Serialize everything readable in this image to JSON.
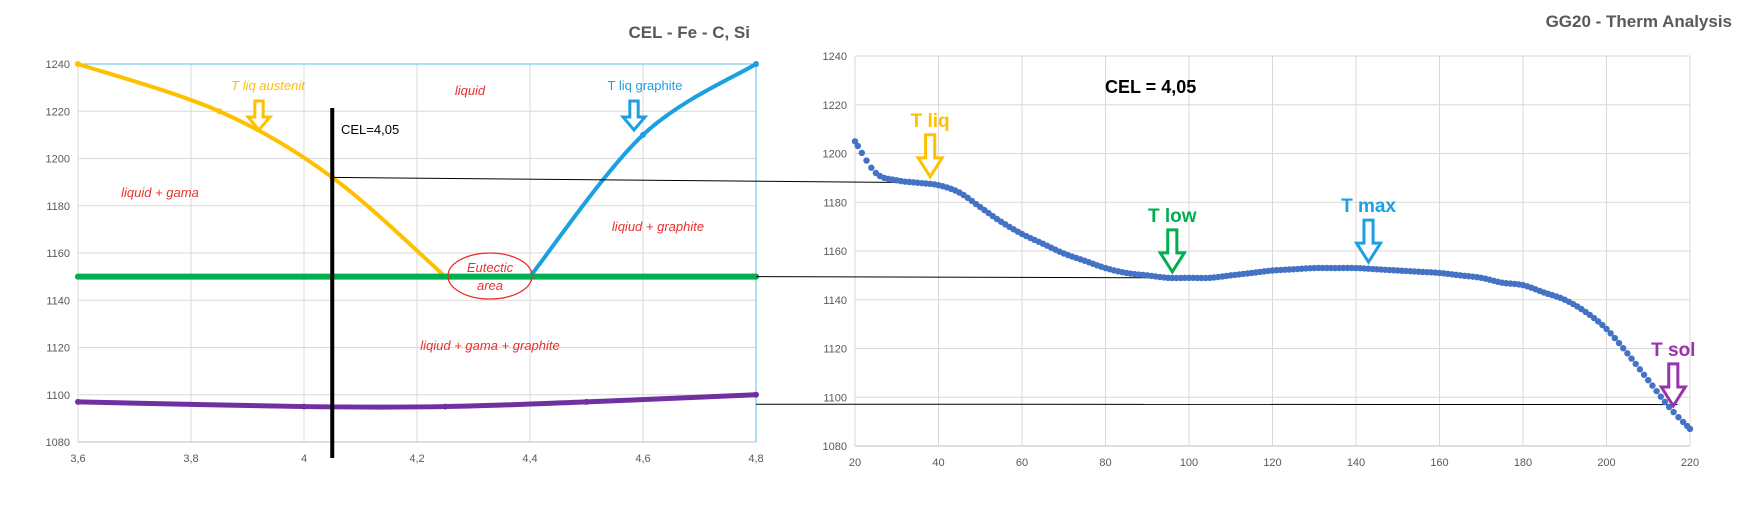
{
  "chart_data": [
    {
      "type": "line",
      "title": "CEL - Fe - C, Si",
      "xlim": [
        3.6,
        4.8
      ],
      "ylim": [
        1080,
        1240
      ],
      "x_ticks": [
        "3,6",
        "3,8",
        "4",
        "4,2",
        "4,4",
        "4,6",
        "4,8"
      ],
      "y_ticks": [
        "1240",
        "1220",
        "1200",
        "1180",
        "1160",
        "1140",
        "1120",
        "1100",
        "1080"
      ],
      "grid": true,
      "series": [
        {
          "name": "T liq austenit",
          "color": "#ffc000",
          "x": [
            3.6,
            3.85,
            4.05,
            4.25
          ],
          "y": [
            1240,
            1220,
            1192,
            1150
          ]
        },
        {
          "name": "T liq graphite",
          "color": "#1ba1e2",
          "x": [
            4.4,
            4.6,
            4.8
          ],
          "y": [
            1150,
            1210,
            1240
          ]
        },
        {
          "color": "#00b050",
          "x": [
            3.6,
            4.8
          ],
          "y": [
            1150,
            1150
          ]
        },
        {
          "color": "#7030a0",
          "x": [
            3.6,
            4.0,
            4.25,
            4.5,
            4.8
          ],
          "y": [
            1097,
            1095,
            1095,
            1097,
            1100
          ]
        }
      ],
      "marker_line": {
        "label": "CEL=4,05",
        "x": 4.05
      },
      "regions": [
        "liquid",
        "liquid + gama",
        "liqiud + graphite",
        "liqiud + gama + graphite"
      ],
      "eutectic_label": [
        "Eutectic",
        "area"
      ]
    },
    {
      "type": "scatter",
      "title": "GG20  - Therm Analysis",
      "xlim": [
        20,
        220
      ],
      "ylim": [
        1080,
        1240
      ],
      "x_ticks": [
        "20",
        "40",
        "60",
        "80",
        "100",
        "120",
        "140",
        "160",
        "180",
        "200",
        "220"
      ],
      "y_ticks": [
        "1240",
        "1220",
        "1200",
        "1180",
        "1160",
        "1140",
        "1120",
        "1100",
        "1080"
      ],
      "grid": true,
      "cel_label": "CEL = 4,05",
      "series": [
        {
          "color": "#4472c4",
          "x": [
            20,
            25,
            30,
            35,
            40,
            45,
            50,
            55,
            60,
            65,
            70,
            75,
            80,
            85,
            90,
            95,
            100,
            105,
            110,
            115,
            120,
            125,
            130,
            135,
            140,
            145,
            150,
            155,
            160,
            165,
            170,
            175,
            180,
            185,
            190,
            195,
            200,
            205,
            210,
            215,
            220
          ],
          "y": [
            1205,
            1192,
            1189,
            1188,
            1187,
            1184,
            1178,
            1172,
            1167,
            1163,
            1159,
            1156,
            1153,
            1151,
            1150,
            1149,
            1149,
            1149,
            1150,
            1151,
            1152,
            1152.5,
            1153,
            1153,
            1153,
            1152.5,
            1152,
            1151.5,
            1151,
            1150,
            1149,
            1147,
            1146,
            1143,
            1140,
            1135,
            1128,
            1118,
            1107,
            1096,
            1087
          ]
        }
      ],
      "annotations": [
        {
          "label": "T liq",
          "color": "#ffc000",
          "x": 38,
          "y": 1188
        },
        {
          "label": "T low",
          "color": "#00b050",
          "x": 96,
          "y": 1149
        },
        {
          "label": "T max",
          "color": "#1ba1e2",
          "x": 143,
          "y": 1153
        },
        {
          "label": "T sol",
          "color": "#9933aa",
          "x": 216,
          "y": 1094
        }
      ]
    }
  ]
}
